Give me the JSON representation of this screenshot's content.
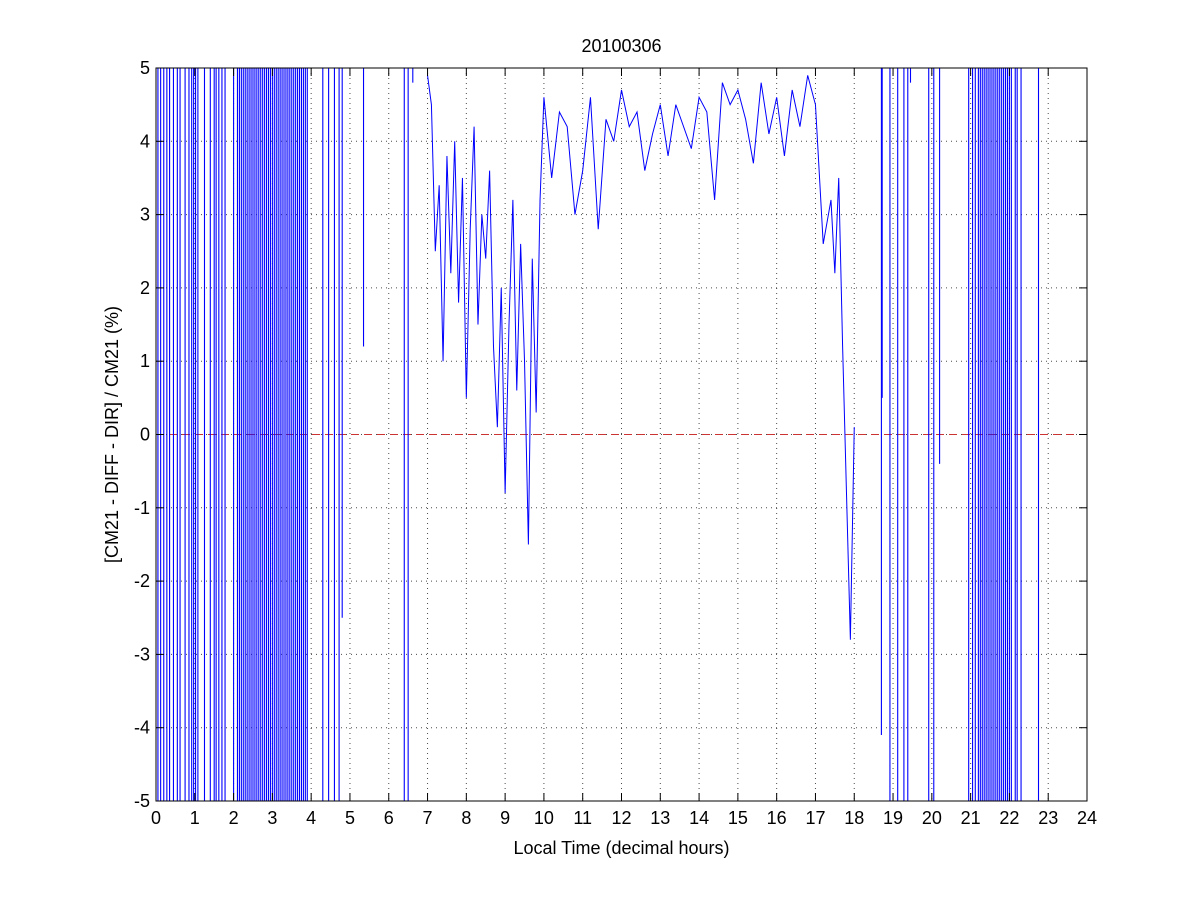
{
  "chart_data": {
    "type": "line",
    "title": "20100306",
    "xlabel": "Local Time (decimal hours)",
    "ylabel": "[CM21 - DIFF - DIR] / CM21 (%)",
    "xlim": [
      0,
      24
    ],
    "ylim": [
      -5,
      5
    ],
    "xticks": [
      0,
      1,
      2,
      3,
      4,
      5,
      6,
      7,
      8,
      9,
      10,
      11,
      12,
      13,
      14,
      15,
      16,
      17,
      18,
      19,
      20,
      21,
      22,
      23,
      24
    ],
    "yticks": [
      -5,
      -4,
      -3,
      -2,
      -1,
      0,
      1,
      2,
      3,
      4,
      5
    ],
    "grid": true,
    "grid_style": "dotted",
    "reference_line": {
      "y": 0,
      "style": "dashed",
      "color": "#cc3333"
    },
    "series": [
      {
        "color": "#0000ff",
        "x": [
          7.0,
          7.1,
          7.2,
          7.3,
          7.4,
          7.5,
          7.6,
          7.7,
          7.8,
          7.9,
          8.0,
          8.1,
          8.2,
          8.3,
          8.4,
          8.5,
          8.6,
          8.7,
          8.8,
          8.9,
          9.0,
          9.1,
          9.2,
          9.3,
          9.4,
          9.5,
          9.6,
          9.7,
          9.8,
          9.9,
          10.0,
          10.2,
          10.4,
          10.6,
          10.8,
          11.0,
          11.2,
          11.4,
          11.6,
          11.8,
          12.0,
          12.2,
          12.4,
          12.6,
          12.8,
          13.0,
          13.2,
          13.4,
          13.6,
          13.8,
          14.0,
          14.2,
          14.4,
          14.6,
          14.8,
          15.0,
          15.2,
          15.4,
          15.6,
          15.8,
          16.0,
          16.2,
          16.4,
          16.6,
          16.8,
          17.0,
          17.2,
          17.4,
          17.5,
          17.6,
          17.7,
          17.8,
          17.9,
          18.0
        ],
        "y": [
          4.9,
          4.5,
          2.5,
          3.4,
          1.0,
          3.8,
          2.2,
          4.0,
          1.8,
          3.5,
          0.5,
          2.8,
          4.2,
          1.5,
          3.0,
          2.4,
          3.6,
          1.2,
          0.1,
          2.0,
          -0.8,
          1.5,
          3.2,
          0.6,
          2.6,
          1.0,
          -1.5,
          2.4,
          0.3,
          3.2,
          4.6,
          3.5,
          4.4,
          4.2,
          3.0,
          3.6,
          4.6,
          2.8,
          4.3,
          4.0,
          4.7,
          4.2,
          4.4,
          3.6,
          4.1,
          4.5,
          3.8,
          4.5,
          4.2,
          3.9,
          4.6,
          4.4,
          3.2,
          4.8,
          4.5,
          4.7,
          4.3,
          3.7,
          4.8,
          4.1,
          4.6,
          3.8,
          4.7,
          4.2,
          4.9,
          4.5,
          2.6,
          3.2,
          2.2,
          3.5,
          1.2,
          -0.8,
          -2.8,
          0.1
        ]
      }
    ],
    "spikes": [
      {
        "x": 0.05,
        "y1": -5,
        "y2": 5
      },
      {
        "x": 0.12,
        "y1": -5,
        "y2": 5
      },
      {
        "x": 0.2,
        "y1": -5,
        "y2": 5
      },
      {
        "x": 0.28,
        "y1": -5,
        "y2": 5
      },
      {
        "x": 0.35,
        "y1": -5,
        "y2": 5
      },
      {
        "x": 0.45,
        "y1": -5,
        "y2": 5
      },
      {
        "x": 0.55,
        "y1": -5,
        "y2": 5
      },
      {
        "x": 0.62,
        "y1": -5,
        "y2": 5
      },
      {
        "x": 0.75,
        "y1": -5,
        "y2": 5
      },
      {
        "x": 0.85,
        "y1": -5,
        "y2": 5
      },
      {
        "x": 0.92,
        "y1": -5,
        "y2": 5
      },
      {
        "x": 0.97,
        "y1": -5,
        "y2": 5
      },
      {
        "x": 1.02,
        "y1": -5,
        "y2": 5
      },
      {
        "x": 1.08,
        "y1": -5,
        "y2": 5
      },
      {
        "x": 1.25,
        "y1": -5,
        "y2": 5
      },
      {
        "x": 1.4,
        "y1": -5,
        "y2": 5
      },
      {
        "x": 1.5,
        "y1": -5,
        "y2": 5
      },
      {
        "x": 1.55,
        "y1": -5,
        "y2": 5
      },
      {
        "x": 1.62,
        "y1": -5,
        "y2": 5
      },
      {
        "x": 1.7,
        "y1": -5,
        "y2": 5
      },
      {
        "x": 1.78,
        "y1": -5,
        "y2": 5
      },
      {
        "x": 2.0,
        "y1": -5,
        "y2": 5
      },
      {
        "x": 2.1,
        "y1": -5,
        "y2": 5
      },
      {
        "x": 2.15,
        "y1": -5,
        "y2": 5
      },
      {
        "x": 2.2,
        "y1": -5,
        "y2": 5
      },
      {
        "x": 2.25,
        "y1": -5,
        "y2": 5
      },
      {
        "x": 2.3,
        "y1": -5,
        "y2": 5
      },
      {
        "x": 2.35,
        "y1": -5,
        "y2": 5
      },
      {
        "x": 2.4,
        "y1": -5,
        "y2": 5
      },
      {
        "x": 2.45,
        "y1": -5,
        "y2": 5
      },
      {
        "x": 2.5,
        "y1": -5,
        "y2": 5
      },
      {
        "x": 2.55,
        "y1": -5,
        "y2": 5
      },
      {
        "x": 2.6,
        "y1": -5,
        "y2": 5
      },
      {
        "x": 2.65,
        "y1": -5,
        "y2": 5
      },
      {
        "x": 2.7,
        "y1": -5,
        "y2": 5
      },
      {
        "x": 2.75,
        "y1": -5,
        "y2": 5
      },
      {
        "x": 2.8,
        "y1": -5,
        "y2": 5
      },
      {
        "x": 2.85,
        "y1": -5,
        "y2": 5
      },
      {
        "x": 2.9,
        "y1": -5,
        "y2": 5
      },
      {
        "x": 2.95,
        "y1": -5,
        "y2": 5
      },
      {
        "x": 3.0,
        "y1": -5,
        "y2": 5
      },
      {
        "x": 3.05,
        "y1": -5,
        "y2": 5
      },
      {
        "x": 3.1,
        "y1": -5,
        "y2": 5
      },
      {
        "x": 3.15,
        "y1": -5,
        "y2": 5
      },
      {
        "x": 3.2,
        "y1": -5,
        "y2": 5
      },
      {
        "x": 3.25,
        "y1": -5,
        "y2": 5
      },
      {
        "x": 3.3,
        "y1": -5,
        "y2": 5
      },
      {
        "x": 3.35,
        "y1": -5,
        "y2": 5
      },
      {
        "x": 3.4,
        "y1": -5,
        "y2": 5
      },
      {
        "x": 3.45,
        "y1": -5,
        "y2": 5
      },
      {
        "x": 3.5,
        "y1": -5,
        "y2": 5
      },
      {
        "x": 3.55,
        "y1": -5,
        "y2": 5
      },
      {
        "x": 3.6,
        "y1": -5,
        "y2": 5
      },
      {
        "x": 3.65,
        "y1": -5,
        "y2": 5
      },
      {
        "x": 3.7,
        "y1": -5,
        "y2": 5
      },
      {
        "x": 3.75,
        "y1": -5,
        "y2": 5
      },
      {
        "x": 3.8,
        "y1": -5,
        "y2": 5
      },
      {
        "x": 3.85,
        "y1": -5,
        "y2": 5
      },
      {
        "x": 3.9,
        "y1": -5,
        "y2": 5
      },
      {
        "x": 4.3,
        "y1": -5,
        "y2": 5
      },
      {
        "x": 4.45,
        "y1": -5,
        "y2": 5
      },
      {
        "x": 4.6,
        "y1": -5,
        "y2": 5
      },
      {
        "x": 4.72,
        "y1": -5,
        "y2": 5
      },
      {
        "x": 4.8,
        "y1": -2.5,
        "y2": 5
      },
      {
        "x": 5.35,
        "y1": 1.2,
        "y2": 5
      },
      {
        "x": 6.4,
        "y1": -5,
        "y2": 5
      },
      {
        "x": 6.5,
        "y1": -5,
        "y2": 5
      },
      {
        "x": 6.62,
        "y1": 4.8,
        "y2": 5
      },
      {
        "x": 18.7,
        "y1": -4.1,
        "y2": 5
      },
      {
        "x": 18.72,
        "y1": 0.5,
        "y2": 5
      },
      {
        "x": 18.92,
        "y1": -5,
        "y2": 5
      },
      {
        "x": 19.12,
        "y1": -5,
        "y2": 5
      },
      {
        "x": 19.28,
        "y1": -5,
        "y2": 5
      },
      {
        "x": 19.38,
        "y1": -5,
        "y2": 5
      },
      {
        "x": 19.45,
        "y1": 4.8,
        "y2": 5
      },
      {
        "x": 19.92,
        "y1": -5,
        "y2": 5
      },
      {
        "x": 20.05,
        "y1": -5,
        "y2": 5
      },
      {
        "x": 20.2,
        "y1": -0.4,
        "y2": 5
      },
      {
        "x": 20.95,
        "y1": -5,
        "y2": 5
      },
      {
        "x": 21.05,
        "y1": -5,
        "y2": 5
      },
      {
        "x": 21.12,
        "y1": -5,
        "y2": 5
      },
      {
        "x": 21.2,
        "y1": -5,
        "y2": 5
      },
      {
        "x": 21.25,
        "y1": -5,
        "y2": 5
      },
      {
        "x": 21.3,
        "y1": -5,
        "y2": 5
      },
      {
        "x": 21.35,
        "y1": -5,
        "y2": 5
      },
      {
        "x": 21.4,
        "y1": -5,
        "y2": 5
      },
      {
        "x": 21.45,
        "y1": -5,
        "y2": 5
      },
      {
        "x": 21.5,
        "y1": -5,
        "y2": 5
      },
      {
        "x": 21.55,
        "y1": -5,
        "y2": 5
      },
      {
        "x": 21.6,
        "y1": -5,
        "y2": 5
      },
      {
        "x": 21.65,
        "y1": -5,
        "y2": 5
      },
      {
        "x": 21.7,
        "y1": -5,
        "y2": 5
      },
      {
        "x": 21.75,
        "y1": -5,
        "y2": 5
      },
      {
        "x": 21.8,
        "y1": -5,
        "y2": 5
      },
      {
        "x": 21.85,
        "y1": -5,
        "y2": 5
      },
      {
        "x": 21.9,
        "y1": -5,
        "y2": 5
      },
      {
        "x": 21.95,
        "y1": -5,
        "y2": 5
      },
      {
        "x": 22.0,
        "y1": -5,
        "y2": 5
      },
      {
        "x": 22.05,
        "y1": -5,
        "y2": 5
      },
      {
        "x": 22.15,
        "y1": -5,
        "y2": 5
      },
      {
        "x": 22.2,
        "y1": -5,
        "y2": 5
      },
      {
        "x": 22.3,
        "y1": -5,
        "y2": 5
      },
      {
        "x": 22.75,
        "y1": -5,
        "y2": 5
      }
    ]
  },
  "colors": {
    "series": "#0000ff",
    "reference": "#cc3333",
    "axes": "#000000",
    "grid": "#000000",
    "background": "#ffffff"
  }
}
